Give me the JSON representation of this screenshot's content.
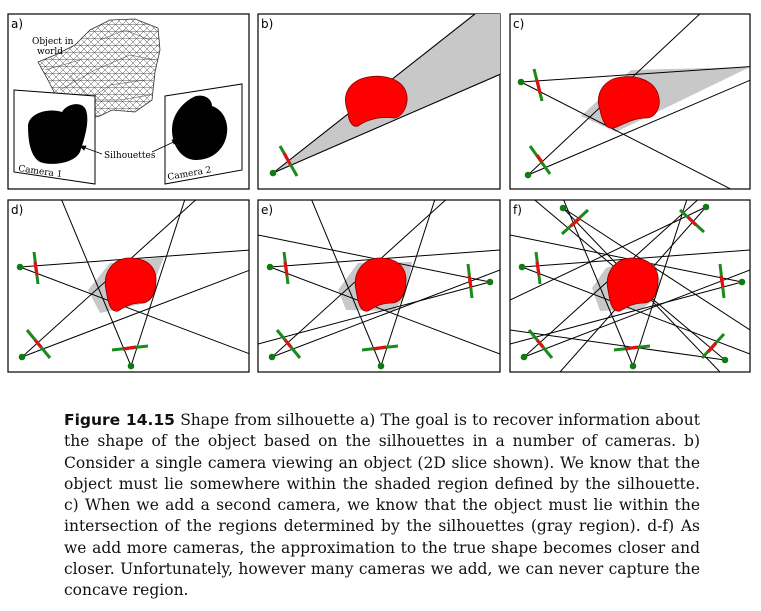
{
  "panels": {
    "a": {
      "label": "a)",
      "object_text_1": "Object in",
      "object_text_2": "world",
      "silhouettes": "Silhouettes",
      "camera1": "Camera 1",
      "camera2": "Camera 2"
    },
    "b": {
      "label": "b)"
    },
    "c": {
      "label": "c)"
    },
    "d": {
      "label": "d)"
    },
    "e": {
      "label": "e)"
    },
    "f": {
      "label": "f)"
    }
  },
  "caption": {
    "figure_number": "Figure 14.15",
    "text": "Shape from silhouette a) The goal is to recover information about the shape of the object based on the silhouettes in a number of cameras. b) Consider a single camera viewing an object (2D slice shown). We know that the object must lie somewhere within the shaded region defined by the silhouette. c) When we add a second camera, we know that the object must lie within the intersection of the regions determined by the silhouettes (gray region). d-f) As we add more cameras, the approximation to the true shape becomes closer and closer. Unfortunately, however many cameras we add, we can never capture the concave region."
  },
  "colors": {
    "object": "#ff0000",
    "region": "#c8c8c8",
    "sensor": "#1a8a1a",
    "silhouette_segment": "#dd1111",
    "center": "#127a12"
  }
}
